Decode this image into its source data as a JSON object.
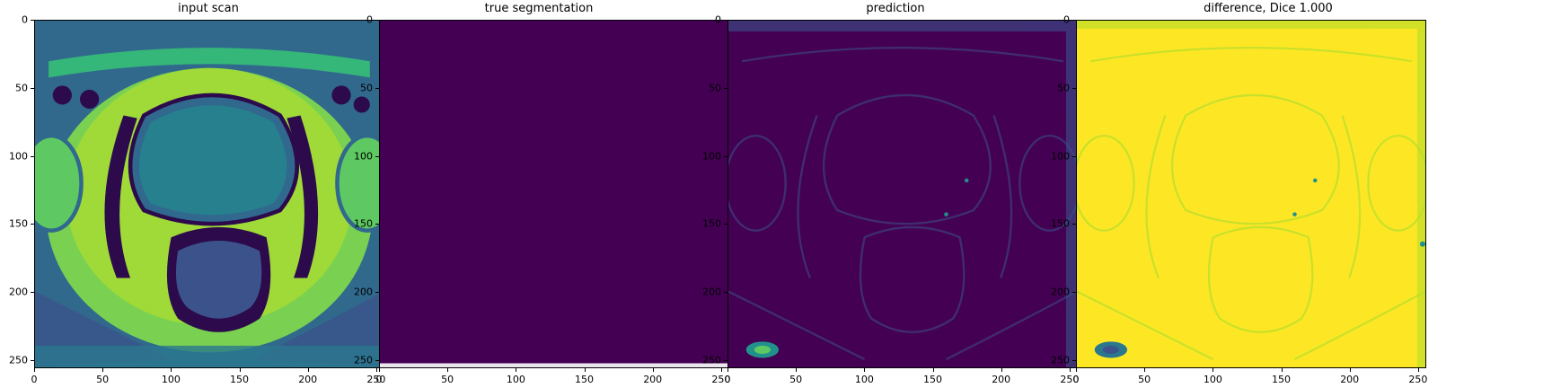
{
  "panels": [
    {
      "title": "input scan",
      "kind": "mri"
    },
    {
      "title": "true segmentation",
      "kind": "flat"
    },
    {
      "title": "prediction",
      "kind": "pred"
    },
    {
      "title": "difference, Dice 1.000",
      "kind": "diff"
    }
  ],
  "axes": {
    "x_ticks": [
      "0",
      "50",
      "100",
      "150",
      "200",
      "250"
    ],
    "y_ticks": [
      "0",
      "50",
      "100",
      "150",
      "200",
      "250"
    ],
    "xlim": [
      0,
      256
    ],
    "ylim": [
      256,
      0
    ]
  },
  "colormap": "viridis",
  "colors": {
    "viridis_dark": "#440154",
    "viridis_blue": "#3b528b",
    "viridis_teal": "#21918c",
    "viridis_green": "#5ec962",
    "viridis_yellow": "#fde725"
  }
}
